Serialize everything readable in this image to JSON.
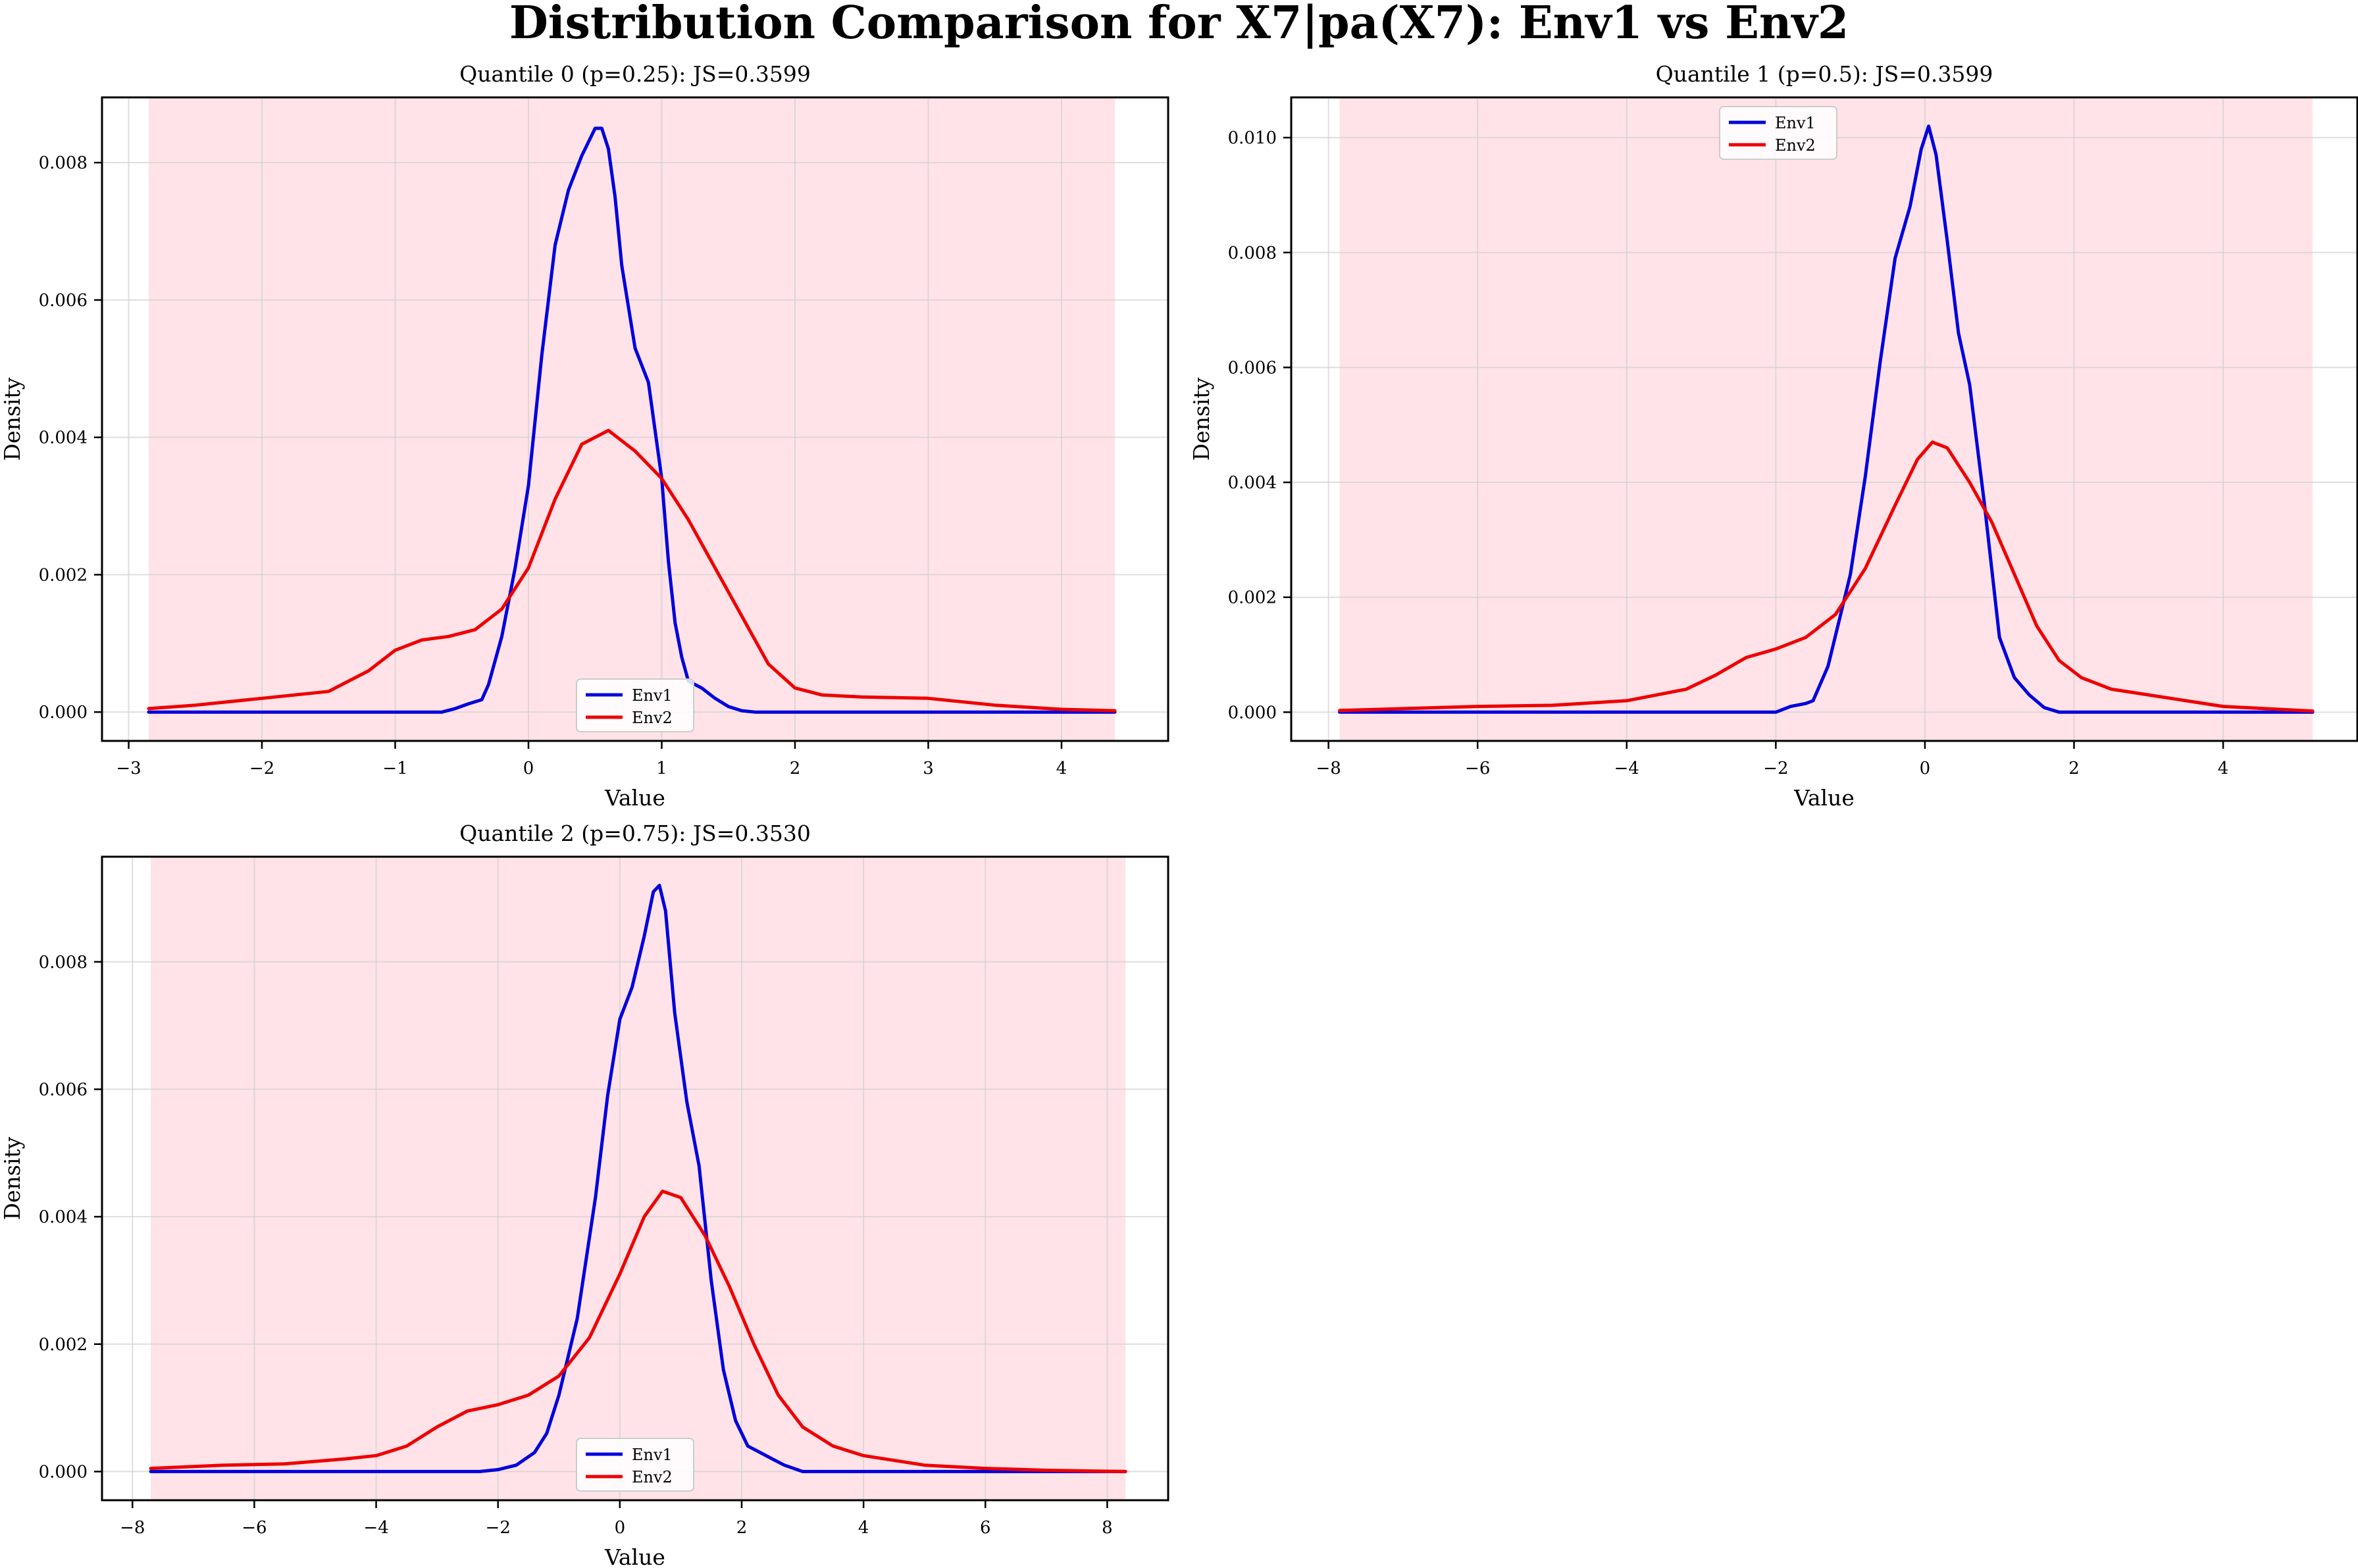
{
  "figure": {
    "title": "Distribution Comparison for X7|pa(X7): Env1 vs Env2"
  },
  "colors": {
    "env1": "#0000dd",
    "env2": "#ee0000",
    "shade": "#ffc0cb",
    "grid": "#d0d0d0"
  },
  "chart_data": [
    {
      "type": "line",
      "title": "Quantile 0 (p=0.25): JS=0.3599",
      "xlabel": "Value",
      "ylabel": "Density",
      "xlim": [
        -3.2,
        4.8
      ],
      "ylim": [
        -0.00042,
        0.00895
      ],
      "xticks": [
        -3,
        -2,
        -1,
        0,
        1,
        2,
        3,
        4
      ],
      "yticks": [
        0.0,
        0.002,
        0.004,
        0.006,
        0.008
      ],
      "ytick_labels": [
        "0.000",
        "0.002",
        "0.004",
        "0.006",
        "0.008"
      ],
      "shaded_x_range": [
        -2.85,
        4.4
      ],
      "grid": true,
      "legend": {
        "position": "lower-center",
        "entries": [
          "Env1",
          "Env2"
        ]
      },
      "series": [
        {
          "name": "Env1",
          "color": "#0000dd",
          "x": [
            -2.85,
            -0.65,
            -0.55,
            -0.45,
            -0.35,
            -0.3,
            -0.2,
            -0.1,
            0.0,
            0.1,
            0.2,
            0.3,
            0.4,
            0.5,
            0.55,
            0.6,
            0.65,
            0.7,
            0.8,
            0.9,
            1.0,
            1.05,
            1.1,
            1.15,
            1.2,
            1.3,
            1.4,
            1.5,
            1.6,
            1.7,
            4.4
          ],
          "y": [
            0.0,
            0.0,
            5e-05,
            0.00012,
            0.00018,
            0.0004,
            0.0011,
            0.0021,
            0.0033,
            0.0052,
            0.0068,
            0.0076,
            0.0081,
            0.0085,
            0.0085,
            0.0082,
            0.0075,
            0.0065,
            0.0053,
            0.0048,
            0.0034,
            0.0022,
            0.0013,
            0.0008,
            0.00045,
            0.00035,
            0.0002,
            8e-05,
            2e-05,
            0.0,
            0.0
          ]
        },
        {
          "name": "Env2",
          "color": "#ee0000",
          "x": [
            -2.85,
            -2.5,
            -2.0,
            -1.5,
            -1.2,
            -1.0,
            -0.8,
            -0.6,
            -0.4,
            -0.2,
            0.0,
            0.2,
            0.4,
            0.6,
            0.8,
            1.0,
            1.2,
            1.4,
            1.6,
            1.8,
            2.0,
            2.2,
            2.5,
            3.0,
            3.5,
            4.0,
            4.4
          ],
          "y": [
            5e-05,
            0.0001,
            0.0002,
            0.0003,
            0.0006,
            0.0009,
            0.00105,
            0.0011,
            0.0012,
            0.0015,
            0.0021,
            0.0031,
            0.0039,
            0.0041,
            0.0038,
            0.0034,
            0.0028,
            0.0021,
            0.0014,
            0.0007,
            0.00035,
            0.00025,
            0.00022,
            0.0002,
            0.0001,
            4e-05,
            2e-05
          ]
        }
      ]
    },
    {
      "type": "line",
      "title": "Quantile 1 (p=0.5): JS=0.3599",
      "xlabel": "Value",
      "ylabel": "Density",
      "xlim": [
        -8.5,
        5.8
      ],
      "ylim": [
        -0.0005,
        0.0107
      ],
      "xticks": [
        -8,
        -6,
        -4,
        -2,
        0,
        2,
        4
      ],
      "yticks": [
        0.0,
        0.002,
        0.004,
        0.006,
        0.008,
        0.01
      ],
      "ytick_labels": [
        "0.000",
        "0.002",
        "0.004",
        "0.006",
        "0.008",
        "0.010"
      ],
      "shaded_x_range": [
        -7.85,
        5.2
      ],
      "grid": true,
      "legend": {
        "position": "upper-center",
        "entries": [
          "Env1",
          "Env2"
        ]
      },
      "series": [
        {
          "name": "Env1",
          "color": "#0000dd",
          "x": [
            -7.85,
            -2.0,
            -1.8,
            -1.6,
            -1.5,
            -1.3,
            -1.0,
            -0.8,
            -0.6,
            -0.4,
            -0.2,
            -0.05,
            0.05,
            0.15,
            0.3,
            0.45,
            0.6,
            0.8,
            1.0,
            1.2,
            1.4,
            1.6,
            1.8,
            5.2
          ],
          "y": [
            0.0,
            0.0,
            0.0001,
            0.00015,
            0.0002,
            0.0008,
            0.0024,
            0.0041,
            0.0061,
            0.0079,
            0.0088,
            0.0098,
            0.0102,
            0.0097,
            0.0082,
            0.0066,
            0.0057,
            0.0036,
            0.0013,
            0.0006,
            0.0003,
            8e-05,
            0.0,
            0.0
          ]
        },
        {
          "name": "Env2",
          "color": "#ee0000",
          "x": [
            -7.85,
            -6.0,
            -5.0,
            -4.0,
            -3.2,
            -2.8,
            -2.4,
            -2.0,
            -1.6,
            -1.2,
            -0.8,
            -0.4,
            -0.1,
            0.1,
            0.3,
            0.6,
            0.9,
            1.2,
            1.5,
            1.8,
            2.1,
            2.5,
            3.0,
            4.0,
            5.2
          ],
          "y": [
            3e-05,
            0.0001,
            0.00012,
            0.0002,
            0.0004,
            0.00065,
            0.00095,
            0.0011,
            0.0013,
            0.0017,
            0.0025,
            0.0036,
            0.0044,
            0.0047,
            0.0046,
            0.004,
            0.0033,
            0.0024,
            0.0015,
            0.0009,
            0.0006,
            0.0004,
            0.0003,
            0.0001,
            2e-05
          ]
        }
      ]
    },
    {
      "type": "line",
      "title": "Quantile 2 (p=0.75): JS=0.3530",
      "xlabel": "Value",
      "ylabel": "Density",
      "xlim": [
        -8.5,
        9.0
      ],
      "ylim": [
        -0.00045,
        0.00965
      ],
      "xticks": [
        -8,
        -6,
        -4,
        -2,
        0,
        2,
        4,
        6,
        8
      ],
      "yticks": [
        0.0,
        0.002,
        0.004,
        0.006,
        0.008
      ],
      "ytick_labels": [
        "0.000",
        "0.002",
        "0.004",
        "0.006",
        "0.008"
      ],
      "shaded_x_range": [
        -7.7,
        8.3
      ],
      "grid": true,
      "legend": {
        "position": "lower-center",
        "entries": [
          "Env1",
          "Env2"
        ]
      },
      "series": [
        {
          "name": "Env1",
          "color": "#0000dd",
          "x": [
            -7.7,
            -2.3,
            -2.0,
            -1.7,
            -1.4,
            -1.2,
            -1.0,
            -0.7,
            -0.4,
            -0.2,
            0.0,
            0.2,
            0.4,
            0.55,
            0.65,
            0.75,
            0.9,
            1.1,
            1.3,
            1.5,
            1.7,
            1.9,
            2.1,
            2.3,
            2.5,
            2.7,
            3.0,
            8.3
          ],
          "y": [
            0.0,
            0.0,
            3e-05,
            0.0001,
            0.0003,
            0.0006,
            0.0012,
            0.0024,
            0.0043,
            0.0059,
            0.0071,
            0.0076,
            0.0084,
            0.0091,
            0.0092,
            0.0088,
            0.0072,
            0.0058,
            0.0048,
            0.003,
            0.0016,
            0.0008,
            0.0004,
            0.0003,
            0.0002,
            0.0001,
            0.0,
            0.0
          ]
        },
        {
          "name": "Env2",
          "color": "#ee0000",
          "x": [
            -7.7,
            -6.5,
            -5.5,
            -4.5,
            -4.0,
            -3.5,
            -3.0,
            -2.5,
            -2.0,
            -1.5,
            -1.0,
            -0.5,
            0.0,
            0.4,
            0.7,
            1.0,
            1.4,
            1.8,
            2.2,
            2.6,
            3.0,
            3.5,
            4.0,
            5.0,
            6.0,
            7.0,
            8.3
          ],
          "y": [
            5e-05,
            0.0001,
            0.00012,
            0.0002,
            0.00025,
            0.0004,
            0.0007,
            0.00095,
            0.00105,
            0.0012,
            0.0015,
            0.0021,
            0.0031,
            0.004,
            0.0044,
            0.0043,
            0.0037,
            0.0029,
            0.002,
            0.0012,
            0.0007,
            0.0004,
            0.00025,
            0.0001,
            5e-05,
            2e-05,
            0.0
          ]
        }
      ]
    }
  ]
}
